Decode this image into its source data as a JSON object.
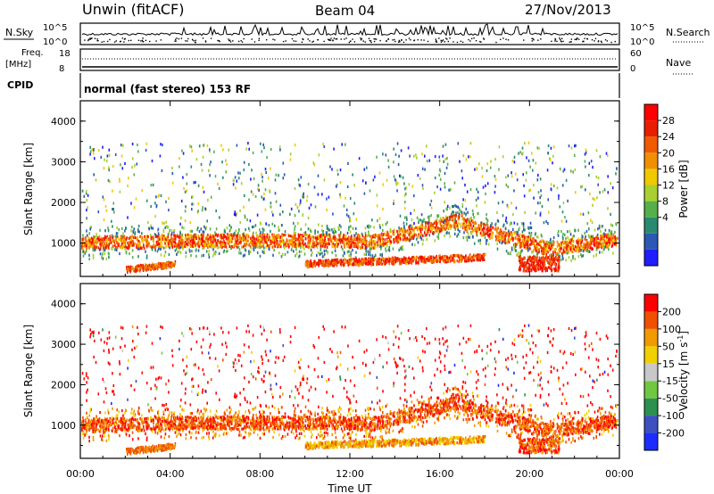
{
  "header": {
    "station": "Unwin (fitACF)",
    "beam": "Beam 04",
    "date": "27/Nov/2013"
  },
  "top_panels": {
    "nsky_label": "N.Sky",
    "nsky_ticks": [
      "10^5",
      "10^0"
    ],
    "nsearch_label": "N.Search",
    "freq_label": "Freq.",
    "freq_unit": "[MHz]",
    "freq_ticks": [
      "18",
      "8"
    ],
    "nave_label": "Nave",
    "nave_ticks": [
      "60",
      "0"
    ],
    "cpid_label": "CPID",
    "cpid_text": "normal (fast stereo) 153 RF"
  },
  "colors": {
    "power": [
      "#1e1eff",
      "#2a58b4",
      "#2a8a70",
      "#56b04a",
      "#a8d030",
      "#f0c800",
      "#f09000",
      "#f05a00",
      "#e81e00",
      "#ff0000"
    ],
    "velocity": [
      "#1c2cff",
      "#3c50c0",
      "#2c9050",
      "#70c840",
      "#c8c8c8",
      "#f0d000",
      "#f09a00",
      "#f05000",
      "#ff0000"
    ]
  },
  "chart_data": [
    {
      "type": "heatmap",
      "title": "Power",
      "ylabel": "Slant Range [km]",
      "yticks": [
        "4000",
        "3000",
        "2000",
        "1000"
      ],
      "ylim": [
        180,
        4500
      ],
      "xlim": [
        0,
        24
      ],
      "colorbar": {
        "label": "Power [dB]",
        "ticks": [
          "28",
          "24",
          "20",
          "16",
          "12",
          "8",
          "4"
        ],
        "range": [
          0,
          32
        ]
      }
    },
    {
      "type": "heatmap",
      "title": "Velocity",
      "ylabel": "Slant Range [km]",
      "yticks": [
        "4000",
        "3000",
        "2000",
        "1000"
      ],
      "ylim": [
        180,
        4500
      ],
      "xlim": [
        0,
        24
      ],
      "xlabel": "Time UT",
      "xticks": [
        "00:00",
        "04:00",
        "08:00",
        "12:00",
        "16:00",
        "20:00",
        "00:00"
      ],
      "colorbar": {
        "label": "Velocity [m s",
        "label_sup": "-1",
        "label_end": "]",
        "ticks": [
          "200",
          "100",
          "50",
          "15",
          "-15",
          "-50",
          "-100",
          "-200"
        ]
      }
    }
  ]
}
